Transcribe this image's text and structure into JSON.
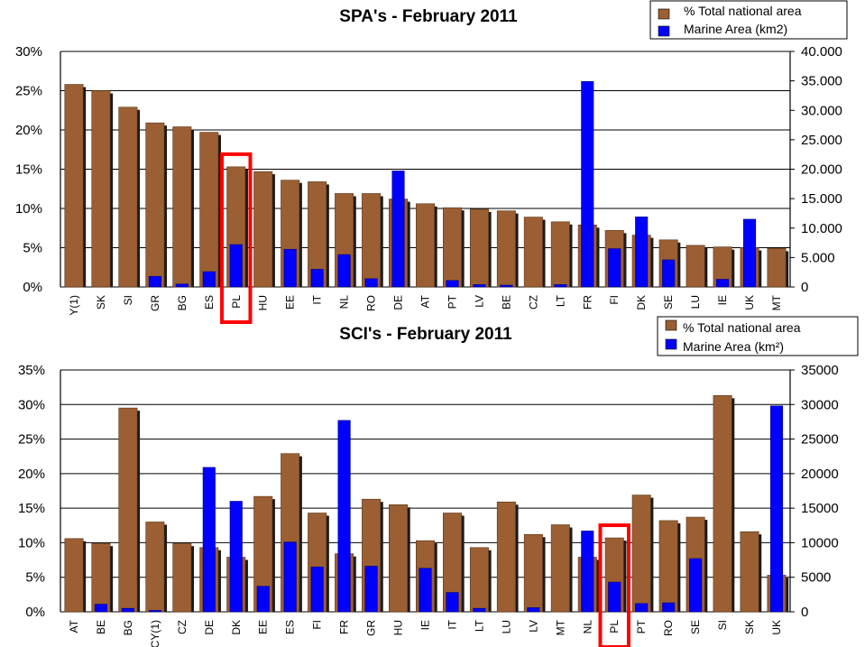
{
  "chart_data": [
    {
      "type": "bar",
      "title": "SPA's - February 2011",
      "categories": [
        "Y(1)",
        "SK",
        "SI",
        "GR",
        "BG",
        "ES",
        "PL",
        "HU",
        "EE",
        "IT",
        "NL",
        "RO",
        "DE",
        "AT",
        "PT",
        "LV",
        "BE",
        "CZ",
        "LT",
        "FR",
        "FI",
        "DK",
        "SE",
        "LU",
        "IE",
        "UK",
        "MT"
      ],
      "series": [
        {
          "name": "% Total national area",
          "axis": "left",
          "color": "#9b5f33",
          "values": [
            25.8,
            25.0,
            22.9,
            20.9,
            20.4,
            19.7,
            15.3,
            14.7,
            13.6,
            13.4,
            11.9,
            11.9,
            11.2,
            10.6,
            10.1,
            9.9,
            9.7,
            8.9,
            8.3,
            7.9,
            7.2,
            6.6,
            6.0,
            5.3,
            5.1,
            5.0,
            4.9
          ]
        },
        {
          "name": "Marine Area (km2)",
          "axis": "right",
          "color": "#0000ff",
          "values": [
            0,
            0,
            0,
            1800,
            500,
            2600,
            7200,
            0,
            6400,
            3000,
            5500,
            1400,
            19700,
            0,
            1100,
            400,
            300,
            0,
            400,
            34900,
            6500,
            11900,
            4600,
            0,
            1300,
            11500,
            0
          ]
        }
      ],
      "y_left": {
        "ylim": [
          0,
          30
        ],
        "ticks": [
          "0%",
          "5%",
          "10%",
          "15%",
          "20%",
          "25%",
          "30%"
        ]
      },
      "y_right": {
        "ylim": [
          0,
          40000
        ],
        "ticks": [
          "0",
          "5.000",
          "10.000",
          "15.000",
          "20.000",
          "25.000",
          "30.000",
          "35.000",
          "40.000"
        ]
      },
      "highlight": {
        "category": "PL",
        "color": "#ff0000"
      },
      "grid": true,
      "legend_position": "top-right"
    },
    {
      "type": "bar",
      "title": "SCI's - February 2011",
      "categories": [
        "AT",
        "BE",
        "BG",
        "CY(1)",
        "CZ",
        "DE",
        "DK",
        "EE",
        "ES",
        "FI",
        "FR",
        "GR",
        "HU",
        "IE",
        "IT",
        "LT",
        "LU",
        "LV",
        "MT",
        "NL",
        "PL",
        "PT",
        "RO",
        "SE",
        "SI",
        "SK",
        "UK"
      ],
      "series": [
        {
          "name": "% Total national area",
          "axis": "left",
          "color": "#9b5f33",
          "values": [
            10.6,
            9.9,
            29.5,
            13.0,
            9.9,
            9.3,
            7.9,
            16.7,
            22.9,
            14.3,
            8.4,
            16.3,
            15.5,
            10.3,
            14.3,
            9.3,
            15.9,
            11.2,
            12.6,
            7.9,
            10.7,
            16.9,
            13.2,
            13.7,
            31.3,
            11.6,
            5.3
          ]
        },
        {
          "name": "Marine Area (km²)",
          "axis": "right",
          "color": "#0000ff",
          "values": [
            0,
            1100,
            500,
            200,
            0,
            20900,
            16000,
            3700,
            10100,
            6500,
            27700,
            6600,
            0,
            6300,
            2800,
            500,
            0,
            600,
            0,
            11700,
            4300,
            1200,
            1300,
            7700,
            0,
            0,
            29800
          ]
        }
      ],
      "y_left": {
        "ylim": [
          0,
          35
        ],
        "ticks": [
          "0%",
          "5%",
          "10%",
          "15%",
          "20%",
          "25%",
          "30%",
          "35%"
        ]
      },
      "y_right": {
        "ylim": [
          0,
          35000
        ],
        "ticks": [
          "0",
          "5000",
          "10000",
          "15000",
          "20000",
          "25000",
          "30000",
          "35000"
        ]
      },
      "highlight": {
        "category": "PL",
        "color": "#ff0000"
      },
      "grid": true,
      "legend_position": "top-right"
    }
  ]
}
